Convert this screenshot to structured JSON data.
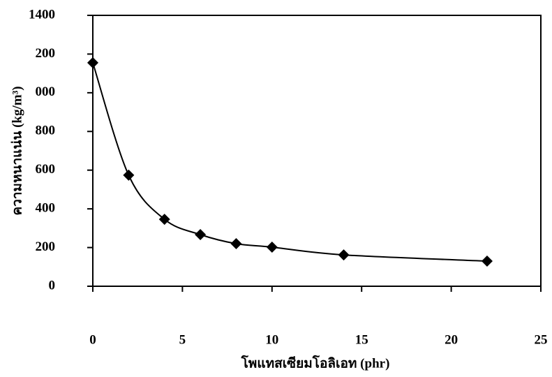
{
  "chart_data": {
    "type": "scatter",
    "y_label": "ความหนาแน่น  (kg/m³)",
    "x_label": "โพแทสเซียมโอลิเอท (phr)",
    "x": [
      0,
      2,
      4,
      6,
      8,
      10,
      14,
      22
    ],
    "values": [
      1155,
      574,
      346,
      267,
      220,
      202,
      162,
      130
    ],
    "color": "#000000",
    "xlim": [
      0,
      25
    ],
    "xticks": [
      0,
      5,
      10,
      15,
      20,
      25
    ],
    "ylim": [
      0,
      1400
    ],
    "yticks": [
      0,
      200,
      400,
      600,
      800,
      {
        "value": 1000,
        "label": "000"
      },
      {
        "value": 1200,
        "label": "200"
      },
      1400
    ]
  }
}
